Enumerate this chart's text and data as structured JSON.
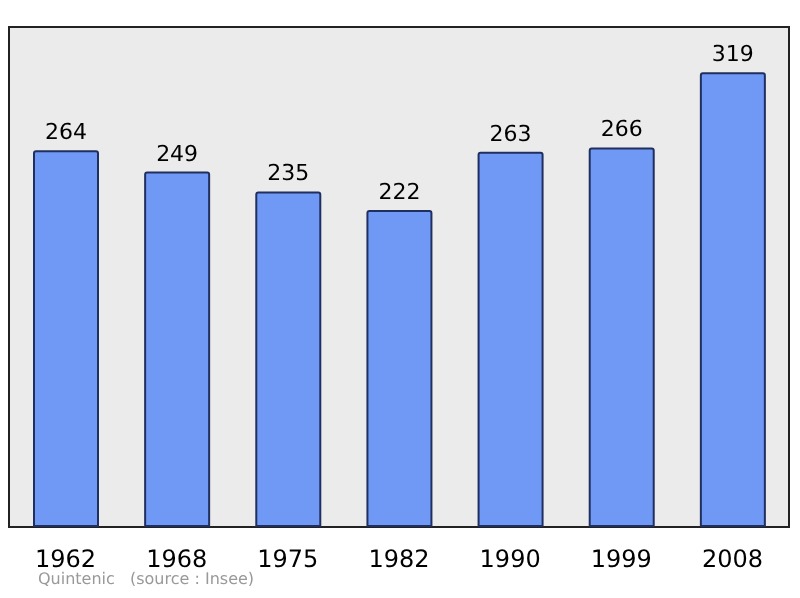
{
  "chart_data": {
    "type": "bar",
    "categories": [
      "1962",
      "1968",
      "1975",
      "1982",
      "1990",
      "1999",
      "2008"
    ],
    "values": [
      264,
      249,
      235,
      222,
      263,
      266,
      319
    ],
    "color": "#7099f5",
    "data_labels": true,
    "annotations": [
      "Quintenic",
      "(source : Insee)"
    ]
  }
}
